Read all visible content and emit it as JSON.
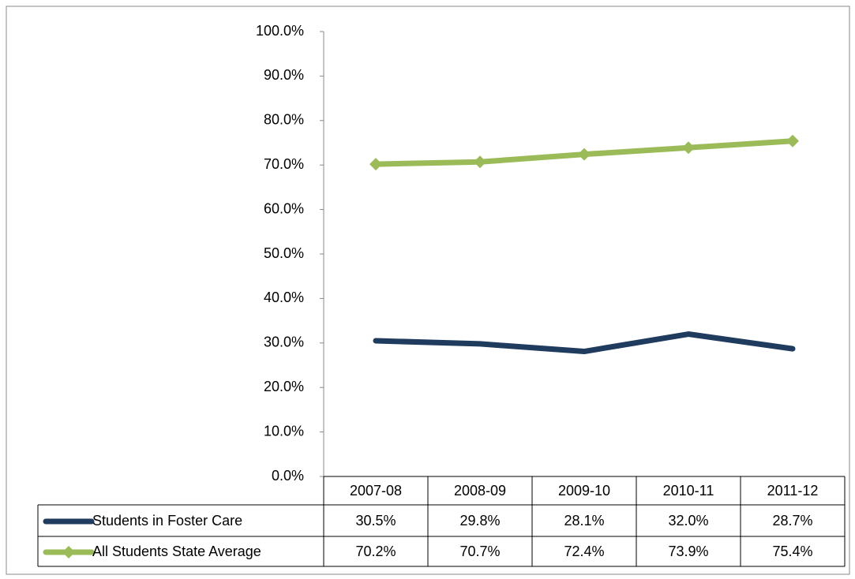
{
  "chart_data": {
    "type": "line",
    "categories": [
      "2007-08",
      "2008-09",
      "2009-10",
      "2010-11",
      "2011-12"
    ],
    "series": [
      {
        "name": "Students in Foster Care",
        "color": "#1f3b5e",
        "marker": "none",
        "values": [
          30.5,
          29.8,
          28.1,
          32.0,
          28.7
        ],
        "value_labels": [
          "30.5%",
          "29.8%",
          "28.1%",
          "32.0%",
          "28.7%"
        ]
      },
      {
        "name": "All Students State Average",
        "color": "#9bbb59",
        "marker": "diamond",
        "values": [
          70.2,
          70.7,
          72.4,
          73.9,
          75.4
        ],
        "value_labels": [
          "70.2%",
          "70.7%",
          "72.4%",
          "73.9%",
          "75.4%"
        ]
      }
    ],
    "ylim": [
      0,
      100
    ],
    "yticks": [
      {
        "value": 0,
        "label": "0.0%"
      },
      {
        "value": 10,
        "label": "10.0%"
      },
      {
        "value": 20,
        "label": "20.0%"
      },
      {
        "value": 30,
        "label": "30.0%"
      },
      {
        "value": 40,
        "label": "40.0%"
      },
      {
        "value": 50,
        "label": "50.0%"
      },
      {
        "value": 60,
        "label": "60.0%"
      },
      {
        "value": 70,
        "label": "70.0%"
      },
      {
        "value": 80,
        "label": "80.0%"
      },
      {
        "value": 90,
        "label": "90.0%"
      },
      {
        "value": 100,
        "label": "100.0%"
      }
    ],
    "grid": false
  }
}
